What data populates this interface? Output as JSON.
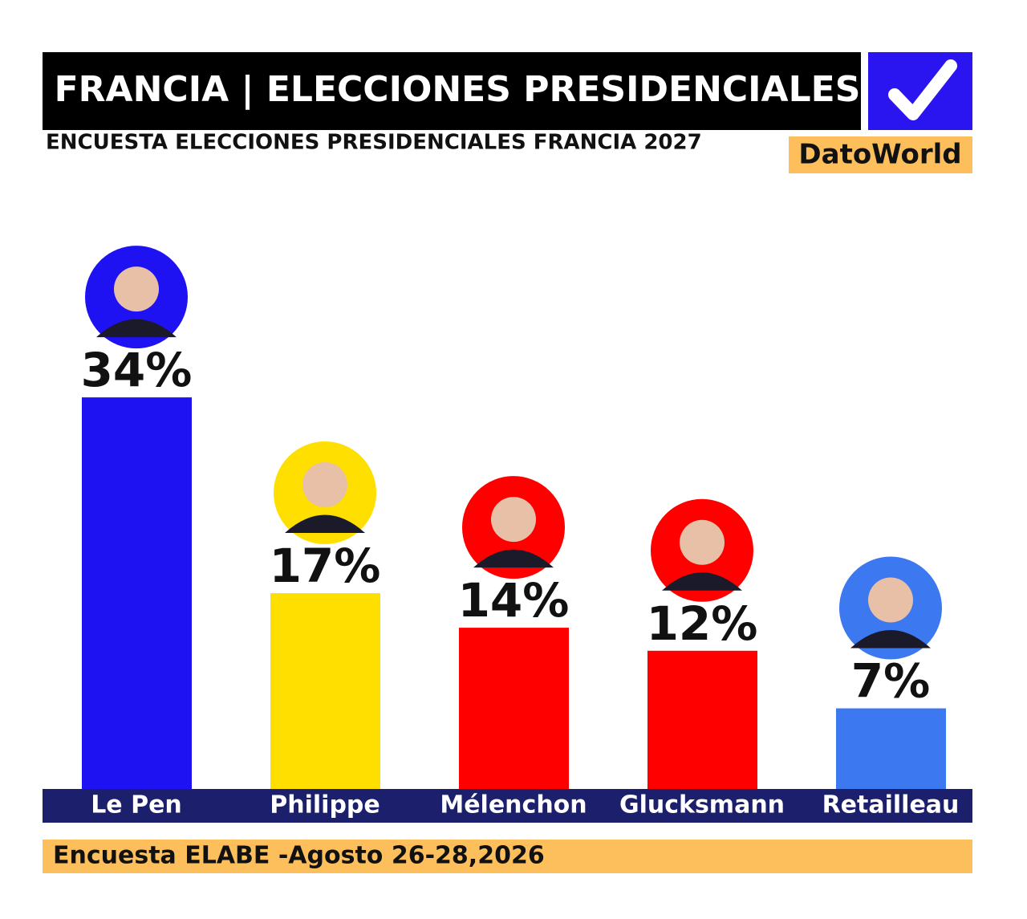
{
  "chart_data": {
    "type": "bar",
    "title": "FRANCIA | ELECCIONES PRESIDENCIALES",
    "subtitle": "ENCUESTA ELECCIONES PRESIDENCIALES FRANCIA 2027",
    "brand": "DatoWorld",
    "source": "Encuesta ELABE -Agosto 26-28,2026",
    "categories": [
      "Le Pen",
      "Philippe",
      "Mélenchon",
      "Glucksmann",
      "Retailleau"
    ],
    "values": [
      34,
      17,
      14,
      12,
      7
    ],
    "value_labels": [
      "34%",
      "17%",
      "14%",
      "12%",
      "7%"
    ],
    "colors": [
      "#1f12f2",
      "#ffdf00",
      "#ff0000",
      "#ff0000",
      "#3c78ef"
    ]
  }
}
